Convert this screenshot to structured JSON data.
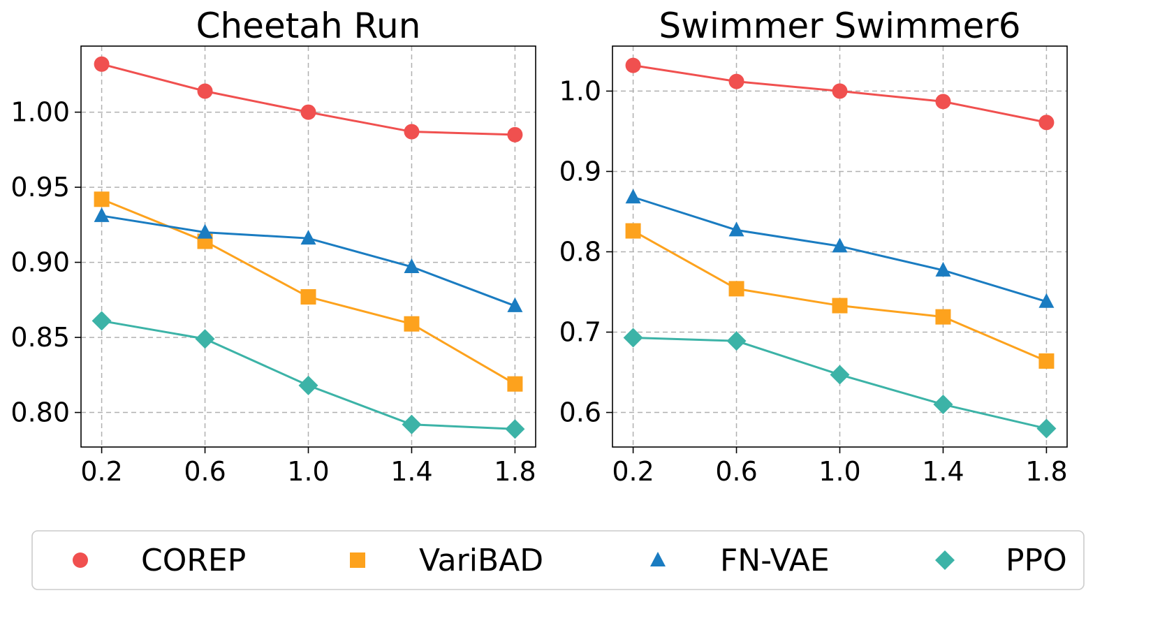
{
  "chart_data": [
    {
      "type": "line",
      "title": "Cheetah Run",
      "xlabel": "",
      "ylabel": "",
      "x": [
        0.2,
        0.6,
        1.0,
        1.4,
        1.8
      ],
      "x_tick_labels": [
        "0.2",
        "0.6",
        "1.0",
        "1.4",
        "1.8"
      ],
      "y_ticks": [
        0.8,
        0.85,
        0.9,
        0.95,
        1.0
      ],
      "y_tick_labels": [
        "0.80",
        "0.85",
        "0.90",
        "0.95",
        "1.00"
      ],
      "xlim": [
        0.12,
        1.88
      ],
      "ylim": [
        0.777,
        1.044
      ],
      "grid": true,
      "series": [
        {
          "name": "COREP",
          "values": [
            1.032,
            1.014,
            1.0,
            0.987,
            0.985
          ]
        },
        {
          "name": "VariBAD",
          "values": [
            0.942,
            0.914,
            0.877,
            0.859,
            0.819
          ]
        },
        {
          "name": "FN-VAE",
          "values": [
            0.931,
            0.92,
            0.916,
            0.897,
            0.871
          ]
        },
        {
          "name": "PPO",
          "values": [
            0.861,
            0.849,
            0.818,
            0.792,
            0.789
          ]
        }
      ]
    },
    {
      "type": "line",
      "title": "Swimmer Swimmer6",
      "xlabel": "",
      "ylabel": "",
      "x": [
        0.2,
        0.6,
        1.0,
        1.4,
        1.8
      ],
      "x_tick_labels": [
        "0.2",
        "0.6",
        "1.0",
        "1.4",
        "1.8"
      ],
      "y_ticks": [
        0.6,
        0.7,
        0.8,
        0.9,
        1.0
      ],
      "y_tick_labels": [
        "0.6",
        "0.7",
        "0.8",
        "0.9",
        "1.0"
      ],
      "xlim": [
        0.12,
        1.88
      ],
      "ylim": [
        0.557,
        1.056
      ],
      "grid": true,
      "series": [
        {
          "name": "COREP",
          "values": [
            1.032,
            1.012,
            1.0,
            0.987,
            0.961
          ]
        },
        {
          "name": "VariBAD",
          "values": [
            0.826,
            0.754,
            0.733,
            0.719,
            0.664
          ]
        },
        {
          "name": "FN-VAE",
          "values": [
            0.868,
            0.827,
            0.807,
            0.777,
            0.738
          ]
        },
        {
          "name": "PPO",
          "values": [
            0.693,
            0.689,
            0.647,
            0.61,
            0.58
          ]
        }
      ]
    }
  ],
  "legend": {
    "placement": "bottom",
    "items": [
      {
        "label": "COREP",
        "marker": "circle",
        "color": "#F0504F"
      },
      {
        "label": "VariBAD",
        "marker": "square",
        "color": "#FDA21D"
      },
      {
        "label": "FN-VAE",
        "marker": "triangle",
        "color": "#1A7CC1"
      },
      {
        "label": "PPO",
        "marker": "diamond",
        "color": "#3CB3A7"
      }
    ]
  }
}
